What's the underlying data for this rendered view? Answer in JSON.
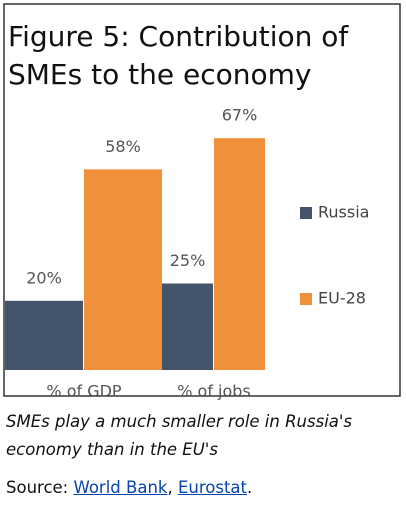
{
  "chart_data": {
    "type": "bar",
    "title_lines": [
      "Figure 5: Contribution of",
      "SMEs to the economy"
    ],
    "categories": [
      "% of GDP",
      "% of jobs"
    ],
    "series": [
      {
        "name": "Russia",
        "color": "#44546a",
        "values": [
          20,
          25
        ],
        "value_labels": [
          "20%",
          "25%"
        ]
      },
      {
        "name": "EU-28",
        "color": "#f0903a",
        "values": [
          58,
          67
        ],
        "value_labels": [
          "58%",
          "67%"
        ]
      }
    ],
    "ylim": [
      0,
      100
    ]
  },
  "caption": {
    "text": "SMEs play a much smaller role in Russia's economy than in the EU's",
    "source_prefix": "Source:",
    "links": [
      "World Bank",
      "Eurostat"
    ],
    "separator": ",",
    "end": "."
  }
}
